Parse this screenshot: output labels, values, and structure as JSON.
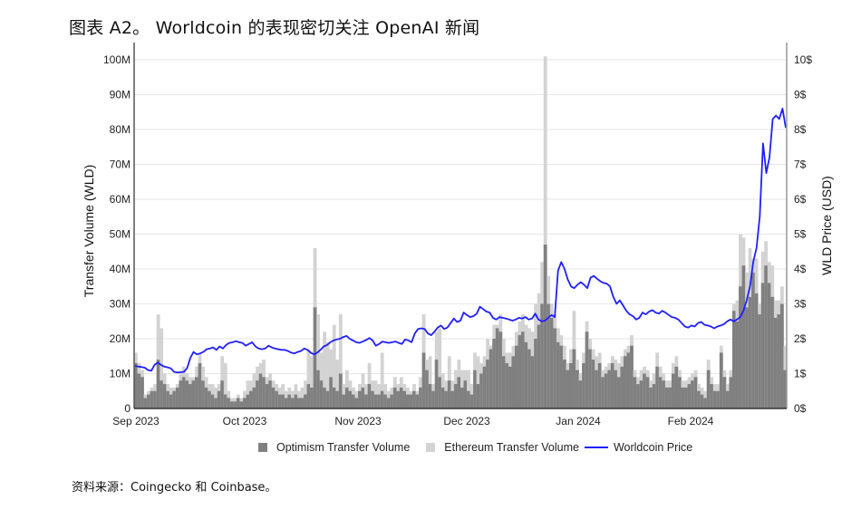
{
  "title": "图表 A2。 Worldcoin 的表现密切关注 OpenAI 新闻",
  "source": "资料来源：Coingecko 和 Coinbase。",
  "colors": {
    "optimism": "#808080",
    "ethereum": "#d3d3d3",
    "price": "#1f1fff",
    "grid": "#e6e6e6",
    "axis": "#555555"
  },
  "legend": [
    {
      "label": "Optimism Transfer Volume",
      "type": "square",
      "color": "#808080"
    },
    {
      "label": "Ethereum Transfer Volume",
      "type": "square",
      "color": "#d3d3d3"
    },
    {
      "label": "Worldcoin Price",
      "type": "line",
      "color": "#1f1fff"
    }
  ],
  "chart_data": {
    "type": "bar+line",
    "title": "图表 A2。 Worldcoin 的表现密切关注 OpenAI 新闻",
    "xlabel": "",
    "ylabel": "Transfer Volume (WLD)",
    "y2label": "WLD Price (USD)",
    "ylim": [
      0,
      100000000
    ],
    "y2lim": [
      0,
      10
    ],
    "yticks": [
      "0",
      "10M",
      "20M",
      "30M",
      "40M",
      "50M",
      "60M",
      "70M",
      "80M",
      "90M",
      "100M"
    ],
    "y2ticks": [
      "0$",
      "1$",
      "2$",
      "3$",
      "4$",
      "5$",
      "6$",
      "7$",
      "8$",
      "9$",
      "10$"
    ],
    "xticks": [
      "Sep 2023",
      "Oct 2023",
      "Nov 2023",
      "Dec 2023",
      "Jan 2024",
      "Feb 2024"
    ],
    "grid": true,
    "legend_position": "bottom",
    "x_range": [
      "2023-09-01",
      "2024-02-27"
    ],
    "series": [
      {
        "name": "Optimism Transfer Volume",
        "unit": "M WLD",
        "kind": "bar",
        "values": [
          13,
          10,
          9,
          3,
          4,
          5,
          5,
          14,
          8,
          7,
          5,
          4,
          5,
          6,
          8,
          9,
          8,
          7,
          8,
          9,
          13,
          8,
          6,
          5,
          4,
          3,
          5,
          8,
          4,
          3,
          2,
          2,
          3,
          2,
          3,
          4,
          5,
          6,
          8,
          10,
          9,
          7,
          8,
          6,
          5,
          4,
          4,
          3,
          4,
          3,
          4,
          3,
          3,
          4,
          7,
          6,
          29,
          11,
          8,
          6,
          5,
          9,
          6,
          5,
          10,
          4,
          6,
          5,
          4,
          3,
          5,
          6,
          4,
          7,
          5,
          4,
          4,
          5,
          4,
          3,
          4,
          6,
          5,
          6,
          5,
          4,
          4,
          5,
          4,
          6,
          16,
          11,
          7,
          5,
          14,
          9,
          6,
          5,
          8,
          5,
          7,
          9,
          6,
          8,
          5,
          4,
          11,
          7,
          10,
          12,
          14,
          17,
          20,
          23,
          22,
          15,
          13,
          12,
          15,
          18,
          21,
          22,
          19,
          17,
          15,
          20,
          24,
          30,
          47,
          30,
          26,
          23,
          19,
          18,
          14,
          11,
          13,
          17,
          11,
          8,
          13,
          22,
          17,
          14,
          11,
          13,
          9,
          10,
          11,
          13,
          11,
          9,
          12,
          15,
          16,
          18,
          9,
          7,
          8,
          10,
          9,
          6,
          7,
          12,
          9,
          8,
          6,
          6,
          10,
          12,
          9,
          6,
          6,
          7,
          8,
          9,
          5,
          4,
          3,
          11,
          7,
          5,
          5,
          16,
          9,
          5,
          9,
          28,
          25,
          35,
          41,
          29,
          32,
          39,
          33,
          27,
          36,
          41,
          36,
          32,
          26,
          27,
          30,
          11
        ]
      },
      {
        "name": "Ethereum Transfer Volume",
        "unit": "M WLD (stacked on top)",
        "kind": "bar",
        "values": [
          3,
          3,
          2,
          1,
          1,
          1,
          2,
          13,
          15,
          3,
          2,
          2,
          1,
          1,
          2,
          3,
          2,
          2,
          1,
          3,
          3,
          4,
          3,
          2,
          3,
          3,
          2,
          7,
          9,
          2,
          1,
          1,
          1,
          1,
          2,
          4,
          3,
          4,
          4,
          3,
          5,
          2,
          2,
          2,
          2,
          2,
          3,
          2,
          2,
          2,
          3,
          2,
          3,
          4,
          10,
          9,
          17,
          16,
          8,
          16,
          14,
          8,
          18,
          9,
          17,
          3,
          5,
          3,
          2,
          2,
          2,
          4,
          3,
          6,
          3,
          4,
          3,
          11,
          3,
          2,
          2,
          3,
          2,
          3,
          2,
          2,
          1,
          2,
          1,
          3,
          11,
          3,
          8,
          2,
          8,
          14,
          4,
          3,
          7,
          3,
          4,
          5,
          5,
          3,
          6,
          3,
          5,
          8,
          3,
          3,
          6,
          1,
          4,
          1,
          5,
          5,
          3,
          4,
          3,
          4,
          4,
          5,
          5,
          6,
          7,
          10,
          9,
          12,
          54,
          8,
          4,
          4,
          4,
          3,
          4,
          2,
          4,
          11,
          3,
          2,
          3,
          3,
          3,
          3,
          4,
          3,
          2,
          2,
          2,
          2,
          3,
          4,
          3,
          2,
          2,
          3,
          2,
          2,
          3,
          2,
          2,
          2,
          3,
          4,
          3,
          2,
          2,
          2,
          3,
          3,
          2,
          2,
          2,
          2,
          2,
          2,
          2,
          2,
          2,
          3,
          2,
          2,
          2,
          2,
          2,
          2,
          2,
          2,
          6,
          15,
          8,
          10,
          14,
          4,
          10,
          3,
          9,
          7,
          6,
          9,
          5,
          4,
          5,
          7
        ]
      },
      {
        "name": "Worldcoin Price",
        "unit": "USD",
        "kind": "line",
        "values": [
          1.22,
          1.2,
          1.19,
          1.17,
          1.1,
          1.08,
          1.25,
          1.32,
          1.25,
          1.2,
          1.18,
          1.15,
          1.05,
          1.03,
          1.04,
          1.05,
          1.15,
          1.45,
          1.62,
          1.55,
          1.58,
          1.62,
          1.7,
          1.72,
          1.75,
          1.68,
          1.78,
          1.72,
          1.82,
          1.88,
          1.9,
          1.93,
          1.9,
          1.88,
          1.8,
          1.85,
          1.9,
          1.78,
          1.72,
          1.7,
          1.72,
          1.8,
          1.75,
          1.72,
          1.7,
          1.68,
          1.68,
          1.65,
          1.6,
          1.58,
          1.62,
          1.65,
          1.72,
          1.68,
          1.6,
          1.55,
          1.6,
          1.68,
          1.78,
          1.82,
          1.9,
          1.95,
          1.98,
          2.0,
          2.05,
          2.08,
          2.0,
          1.95,
          1.9,
          1.88,
          1.92,
          1.96,
          2.02,
          1.95,
          1.8,
          1.85,
          1.92,
          1.9,
          1.88,
          1.9,
          1.92,
          1.88,
          1.85,
          1.98,
          1.95,
          1.9,
          2.15,
          2.28,
          2.3,
          2.28,
          2.15,
          2.1,
          2.2,
          2.32,
          2.38,
          2.28,
          2.32,
          2.45,
          2.58,
          2.48,
          2.52,
          2.75,
          2.68,
          2.62,
          2.65,
          2.72,
          2.92,
          2.85,
          2.78,
          2.75,
          2.6,
          2.55,
          2.62,
          2.6,
          2.58,
          2.55,
          2.52,
          2.55,
          2.6,
          2.58,
          2.62,
          2.55,
          2.58,
          2.72,
          2.55,
          2.5,
          2.52,
          2.6,
          2.68,
          2.62,
          3.95,
          4.2,
          4.0,
          3.7,
          3.5,
          3.45,
          3.55,
          3.62,
          3.55,
          3.45,
          3.75,
          3.8,
          3.72,
          3.65,
          3.6,
          3.58,
          3.5,
          3.2,
          3.0,
          3.1,
          2.95,
          2.8,
          2.7,
          2.65,
          2.55,
          2.6,
          2.75,
          2.7,
          2.78,
          2.82,
          2.75,
          2.72,
          2.8,
          2.75,
          2.68,
          2.62,
          2.6,
          2.55,
          2.45,
          2.35,
          2.32,
          2.38,
          2.35,
          2.45,
          2.48,
          2.4,
          2.38,
          2.35,
          2.3,
          2.35,
          2.38,
          2.42,
          2.5,
          2.55,
          2.5,
          2.55,
          2.62,
          2.8,
          3.1,
          3.5,
          4.2,
          4.6,
          5.5,
          7.6,
          6.75,
          7.2,
          8.3,
          8.4,
          8.3,
          8.6,
          8.05
        ]
      }
    ]
  },
  "axes": {
    "left_label": "Transfer Volume (WLD)",
    "right_label": "WLD Price (USD)"
  }
}
